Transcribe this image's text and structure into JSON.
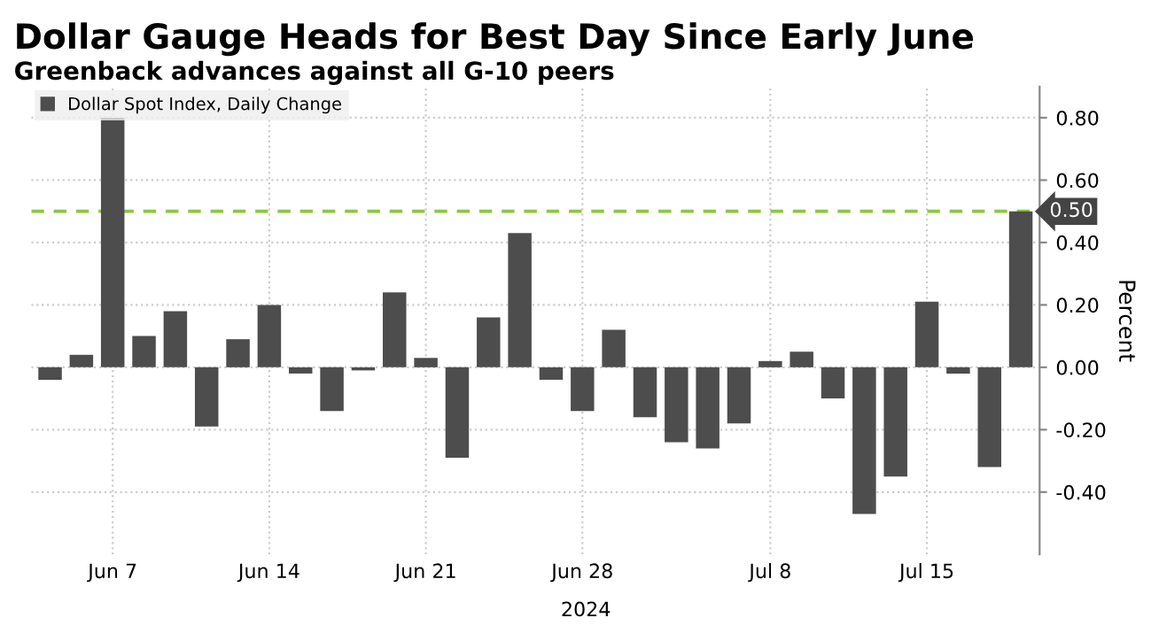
{
  "chart_data": {
    "type": "bar",
    "title": "Dollar Gauge Heads for Best Day Since Early June",
    "subtitle": "Greenback advances against all G-10 peers",
    "xlabel": "2024",
    "ylabel": "Percent",
    "categories": [
      null,
      null,
      "Jun 7",
      null,
      null,
      null,
      null,
      "Jun 14",
      null,
      null,
      null,
      null,
      "Jun 21",
      null,
      null,
      null,
      null,
      "Jun 28",
      null,
      null,
      null,
      null,
      null,
      "Jul 8",
      null,
      null,
      null,
      null,
      "Jul 15",
      null,
      null,
      null
    ],
    "series": [
      {
        "name": "Dollar Spot Index, Daily Change",
        "color": "#4d4d4d",
        "values": [
          -0.04,
          0.04,
          0.8,
          0.1,
          0.18,
          -0.19,
          0.09,
          0.2,
          -0.02,
          -0.14,
          -0.01,
          0.24,
          0.03,
          -0.29,
          0.16,
          0.43,
          -0.04,
          -0.14,
          0.12,
          -0.16,
          -0.24,
          -0.26,
          -0.18,
          0.02,
          0.05,
          -0.1,
          -0.47,
          -0.35,
          0.21,
          -0.02,
          -0.32,
          0.5
        ]
      }
    ],
    "ylim": [
      -0.6,
      0.9
    ],
    "yticks": [
      {
        "value": -0.4,
        "label": "-0.40"
      },
      {
        "value": -0.2,
        "label": "-0.20"
      },
      {
        "value": 0,
        "label": "0.00"
      },
      {
        "value": 0.2,
        "label": "0.20"
      },
      {
        "value": 0.4,
        "label": "0.40"
      },
      {
        "value": 0.6,
        "label": "0.60"
      },
      {
        "value": 0.8,
        "label": "0.80"
      }
    ],
    "ref_lines": [
      {
        "axis": "y",
        "value": 0.5,
        "label": "0.50",
        "color": "#8dc63f",
        "line_style": "dashed"
      }
    ],
    "grid": true,
    "legend": "top left"
  }
}
